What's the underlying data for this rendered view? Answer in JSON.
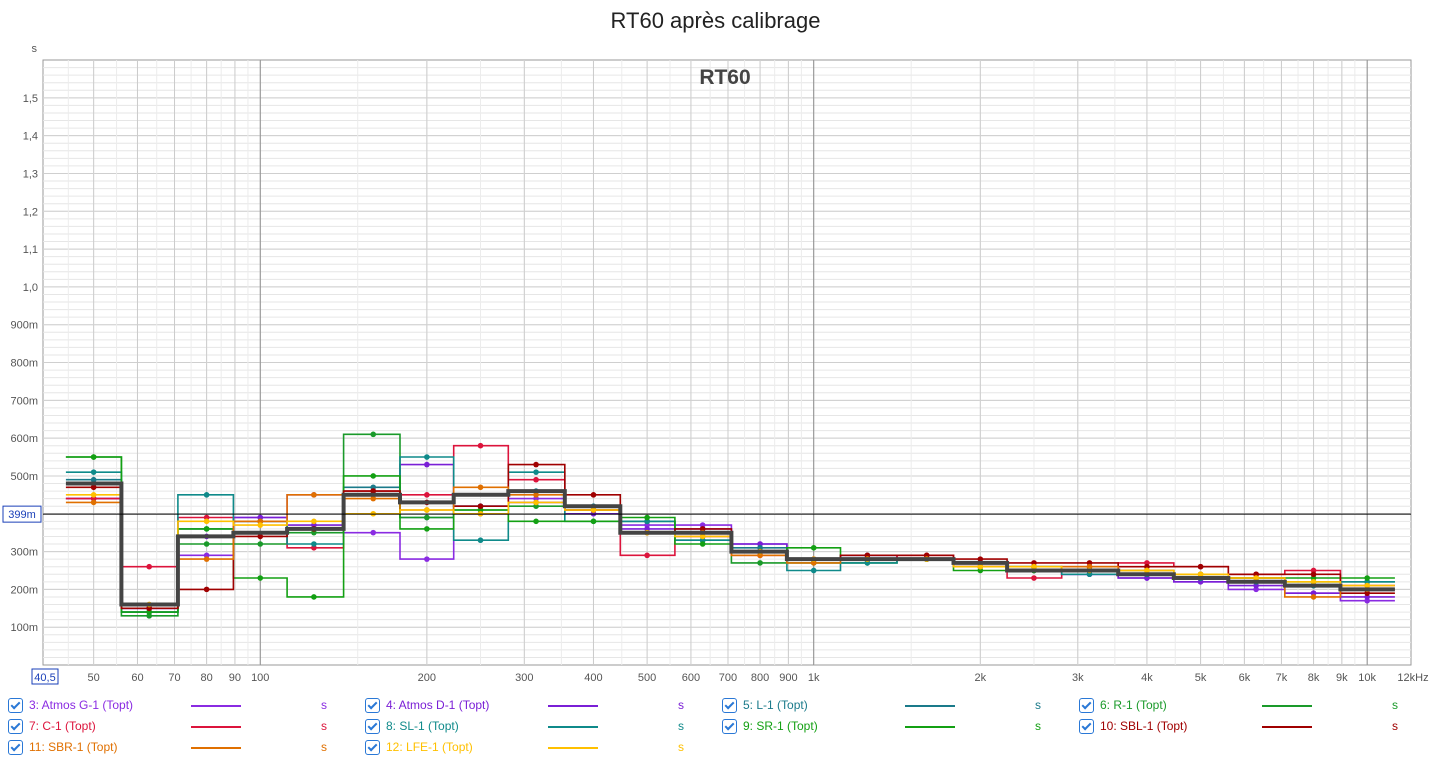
{
  "title": "RT60 après calibrage",
  "chart_data": {
    "type": "line",
    "title": "RT60",
    "ylabel": "s",
    "xlabel": "",
    "x_unit": "Hz",
    "x_scale": "log",
    "xlim": [
      40.5,
      12000
    ],
    "ylim": [
      0,
      1.6
    ],
    "grid": true,
    "cursor_value": 0.399,
    "cursor_label": "399m",
    "x_origin_label": "40,5",
    "x_ticks": [
      {
        "v": 50,
        "label": "50"
      },
      {
        "v": 60,
        "label": "60"
      },
      {
        "v": 70,
        "label": "70"
      },
      {
        "v": 80,
        "label": "80"
      },
      {
        "v": 90,
        "label": "90"
      },
      {
        "v": 100,
        "label": "100"
      },
      {
        "v": 200,
        "label": "200"
      },
      {
        "v": 300,
        "label": "300"
      },
      {
        "v": 400,
        "label": "400"
      },
      {
        "v": 500,
        "label": "500"
      },
      {
        "v": 600,
        "label": "600"
      },
      {
        "v": 700,
        "label": "700"
      },
      {
        "v": 800,
        "label": "800"
      },
      {
        "v": 900,
        "label": "900"
      },
      {
        "v": 1000,
        "label": "1k"
      },
      {
        "v": 2000,
        "label": "2k"
      },
      {
        "v": 3000,
        "label": "3k"
      },
      {
        "v": 4000,
        "label": "4k"
      },
      {
        "v": 5000,
        "label": "5k"
      },
      {
        "v": 6000,
        "label": "6k"
      },
      {
        "v": 7000,
        "label": "7k"
      },
      {
        "v": 8000,
        "label": "8k"
      },
      {
        "v": 9000,
        "label": "9k"
      },
      {
        "v": 10000,
        "label": "10k"
      },
      {
        "v": 12000,
        "label": "12kHz"
      }
    ],
    "y_ticks": [
      {
        "v": 0.1,
        "label": "100m"
      },
      {
        "v": 0.2,
        "label": "200m"
      },
      {
        "v": 0.3,
        "label": "300m"
      },
      {
        "v": 0.4,
        "label": "400m"
      },
      {
        "v": 0.5,
        "label": "500m"
      },
      {
        "v": 0.6,
        "label": "600m"
      },
      {
        "v": 0.7,
        "label": "700m"
      },
      {
        "v": 0.8,
        "label": "800m"
      },
      {
        "v": 0.9,
        "label": "900m"
      },
      {
        "v": 1.0,
        "label": "1,0"
      },
      {
        "v": 1.1,
        "label": "1,1"
      },
      {
        "v": 1.2,
        "label": "1,2"
      },
      {
        "v": 1.3,
        "label": "1,3"
      },
      {
        "v": 1.4,
        "label": "1,4"
      },
      {
        "v": 1.5,
        "label": "1,5"
      }
    ],
    "x": [
      50,
      63,
      80,
      100,
      125,
      160,
      200,
      250,
      315,
      400,
      500,
      630,
      800,
      1000,
      1250,
      1600,
      2000,
      2500,
      3150,
      4000,
      5000,
      6300,
      8000,
      10000
    ],
    "series": [
      {
        "name": "3: Atmos G-1 (Topt)",
        "color": "#8a2be2",
        "values": [
          0.44,
          0.15,
          0.29,
          0.39,
          0.45,
          0.35,
          0.28,
          0.4,
          0.44,
          0.41,
          0.37,
          0.37,
          0.32,
          0.28,
          0.29,
          0.28,
          0.26,
          0.25,
          0.24,
          0.23,
          0.22,
          0.2,
          0.19,
          0.17
        ]
      },
      {
        "name": "4: Atmos D-1 (Topt)",
        "color": "#7a1fd6",
        "values": [
          0.44,
          0.15,
          0.34,
          0.39,
          0.37,
          0.45,
          0.53,
          0.42,
          0.43,
          0.4,
          0.36,
          0.36,
          0.32,
          0.28,
          0.28,
          0.28,
          0.26,
          0.25,
          0.24,
          0.23,
          0.22,
          0.21,
          0.19,
          0.18
        ]
      },
      {
        "name": "5: L-1 (Topt)",
        "color": "#1a7a8a",
        "values": [
          0.49,
          0.14,
          0.36,
          0.38,
          0.36,
          0.47,
          0.39,
          0.42,
          0.46,
          0.42,
          0.38,
          0.35,
          0.31,
          0.28,
          0.29,
          0.28,
          0.27,
          0.26,
          0.25,
          0.24,
          0.23,
          0.22,
          0.21,
          0.2
        ]
      },
      {
        "name": "6: R-1 (Topt)",
        "color": "#1a9a2a",
        "values": [
          0.55,
          0.13,
          0.32,
          0.32,
          0.35,
          0.61,
          0.39,
          0.41,
          0.42,
          0.41,
          0.38,
          0.33,
          0.27,
          0.27,
          0.27,
          0.28,
          0.26,
          0.25,
          0.25,
          0.24,
          0.23,
          0.23,
          0.22,
          0.22
        ]
      },
      {
        "name": "7: C-1 (Topt)",
        "color": "#dc143c",
        "values": [
          0.44,
          0.26,
          0.39,
          0.38,
          0.31,
          0.46,
          0.45,
          0.58,
          0.49,
          0.41,
          0.29,
          0.34,
          0.29,
          0.28,
          0.28,
          0.29,
          0.26,
          0.23,
          0.26,
          0.27,
          0.26,
          0.24,
          0.25,
          0.21
        ]
      },
      {
        "name": "8: SL-1 (Topt)",
        "color": "#0f8a8a",
        "values": [
          0.51,
          0.14,
          0.45,
          0.38,
          0.32,
          0.45,
          0.55,
          0.33,
          0.51,
          0.38,
          0.38,
          0.33,
          0.3,
          0.25,
          0.27,
          0.28,
          0.27,
          0.26,
          0.24,
          0.24,
          0.23,
          0.22,
          0.21,
          0.22
        ]
      },
      {
        "name": "9: SR-1 (Topt)",
        "color": "#13a013",
        "values": [
          0.55,
          0.14,
          0.36,
          0.23,
          0.18,
          0.5,
          0.36,
          0.41,
          0.38,
          0.38,
          0.39,
          0.32,
          0.3,
          0.31,
          0.28,
          0.28,
          0.25,
          0.25,
          0.25,
          0.25,
          0.24,
          0.23,
          0.23,
          0.23
        ]
      },
      {
        "name": "10: SBL-1 (Topt)",
        "color": "#a00000",
        "values": [
          0.47,
          0.15,
          0.2,
          0.34,
          0.36,
          0.46,
          0.43,
          0.42,
          0.53,
          0.45,
          0.35,
          0.36,
          0.3,
          0.28,
          0.29,
          0.29,
          0.28,
          0.27,
          0.27,
          0.26,
          0.26,
          0.24,
          0.24,
          0.19
        ]
      },
      {
        "name": "11: SBR-1 (Topt)",
        "color": "#e07000",
        "values": [
          0.43,
          0.16,
          0.28,
          0.38,
          0.45,
          0.44,
          0.41,
          0.47,
          0.45,
          0.41,
          0.35,
          0.35,
          0.29,
          0.27,
          0.28,
          0.28,
          0.26,
          0.26,
          0.26,
          0.25,
          0.24,
          0.23,
          0.18,
          0.2
        ]
      },
      {
        "name": "12: LFE-1 (Topt)",
        "color": "#ffc000",
        "values": [
          0.45,
          0.16,
          0.38,
          0.37,
          0.38,
          0.4,
          0.41,
          0.4,
          0.43,
          0.41,
          0.35,
          0.34,
          0.3,
          0.28,
          0.28,
          0.28,
          0.26,
          0.26,
          0.25,
          0.25,
          0.24,
          0.23,
          0.22,
          0.21
        ]
      },
      {
        "name": "",
        "color": "#444444",
        "values": [
          0.48,
          0.16,
          0.34,
          0.35,
          0.36,
          0.45,
          0.43,
          0.45,
          0.46,
          0.42,
          0.35,
          0.35,
          0.3,
          0.28,
          0.28,
          0.28,
          0.27,
          0.25,
          0.25,
          0.24,
          0.23,
          0.22,
          0.21,
          0.2
        ]
      }
    ]
  },
  "legend": {
    "unit": "s",
    "items": [
      {
        "label": "3: Atmos G-1 (Topt)",
        "color": "#8a2be2",
        "checked": true
      },
      {
        "label": "4: Atmos D-1 (Topt)",
        "color": "#7a1fd6",
        "checked": true
      },
      {
        "label": "5: L-1 (Topt)",
        "color": "#1a7a8a",
        "checked": true
      },
      {
        "label": "6: R-1 (Topt)",
        "color": "#1a9a2a",
        "checked": true
      },
      {
        "label": "7: C-1 (Topt)",
        "color": "#dc143c",
        "checked": true
      },
      {
        "label": "8: SL-1 (Topt)",
        "color": "#0f8a8a",
        "checked": true
      },
      {
        "label": "9: SR-1 (Topt)",
        "color": "#13a013",
        "checked": true
      },
      {
        "label": "10: SBL-1 (Topt)",
        "color": "#a00000",
        "checked": true
      },
      {
        "label": "11: SBR-1 (Topt)",
        "color": "#e07000",
        "checked": true
      },
      {
        "label": "12: LFE-1 (Topt)",
        "color": "#ffc000",
        "checked": true
      }
    ]
  }
}
